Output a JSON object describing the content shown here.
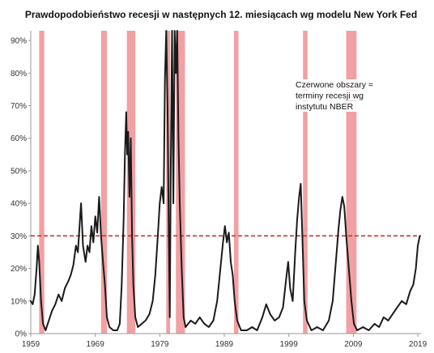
{
  "chart_data": {
    "type": "line",
    "title": "Prawdopodobieństwo recesji w następnych  12. miesiącach wg modelu New York Fed",
    "xlabel": "",
    "ylabel": "",
    "xlim": [
      1959,
      2019.5
    ],
    "ylim": [
      0,
      0.93
    ],
    "x_ticks": [
      1959,
      1969,
      1979,
      1989,
      1999,
      2009,
      2019
    ],
    "x_tick_labels": [
      "1959",
      "1969",
      "1979",
      "1989",
      "1999",
      "2009",
      "2019"
    ],
    "y_ticks": [
      0,
      0.1,
      0.2,
      0.3,
      0.4,
      0.5,
      0.6,
      0.7,
      0.8,
      0.9
    ],
    "y_tick_labels": [
      "0%",
      "10%",
      "20%",
      "30%",
      "40%",
      "50%",
      "60%",
      "70%",
      "80%",
      "90%"
    ],
    "grid": false,
    "legend": "none",
    "threshold": {
      "value": 0.3,
      "style": "dashed",
      "color": "#c0392b"
    },
    "recession_shading": [
      [
        1960.3,
        1961.1
      ],
      [
        1969.9,
        1970.8
      ],
      [
        1973.9,
        1975.2
      ],
      [
        1980.0,
        1980.6
      ],
      [
        1981.5,
        1982.9
      ],
      [
        1990.5,
        1991.2
      ],
      [
        2001.2,
        2001.9
      ],
      [
        2007.9,
        2009.5
      ]
    ],
    "annotation": {
      "lines": [
        "Czerwone obszary =",
        "terminy recesji wg",
        "instytutu NBER"
      ]
    },
    "colors": {
      "line": "#1a1a1a",
      "recession": "#f2a0a3",
      "threshold": "#c0392b"
    },
    "series": [
      {
        "values": [
          [
            1959.0,
            0.1
          ],
          [
            1959.3,
            0.09
          ],
          [
            1959.6,
            0.12
          ],
          [
            1959.9,
            0.2
          ],
          [
            1960.1,
            0.27
          ],
          [
            1960.3,
            0.22
          ],
          [
            1960.6,
            0.1
          ],
          [
            1960.9,
            0.03
          ],
          [
            1961.3,
            0.01
          ],
          [
            1961.8,
            0.04
          ],
          [
            1962.3,
            0.07
          ],
          [
            1962.8,
            0.09
          ],
          [
            1963.3,
            0.12
          ],
          [
            1963.8,
            0.1
          ],
          [
            1964.3,
            0.14
          ],
          [
            1964.8,
            0.16
          ],
          [
            1965.2,
            0.18
          ],
          [
            1965.6,
            0.21
          ],
          [
            1966.0,
            0.27
          ],
          [
            1966.3,
            0.25
          ],
          [
            1966.6,
            0.34
          ],
          [
            1966.8,
            0.4
          ],
          [
            1967.1,
            0.27
          ],
          [
            1967.5,
            0.22
          ],
          [
            1967.8,
            0.27
          ],
          [
            1968.1,
            0.25
          ],
          [
            1968.4,
            0.33
          ],
          [
            1968.7,
            0.28
          ],
          [
            1969.0,
            0.36
          ],
          [
            1969.3,
            0.31
          ],
          [
            1969.6,
            0.42
          ],
          [
            1969.9,
            0.3
          ],
          [
            1970.2,
            0.22
          ],
          [
            1970.5,
            0.15
          ],
          [
            1970.8,
            0.05
          ],
          [
            1971.2,
            0.02
          ],
          [
            1971.8,
            0.01
          ],
          [
            1972.4,
            0.01
          ],
          [
            1972.8,
            0.03
          ],
          [
            1973.1,
            0.15
          ],
          [
            1973.4,
            0.35
          ],
          [
            1973.6,
            0.55
          ],
          [
            1973.8,
            0.68
          ],
          [
            1973.95,
            0.55
          ],
          [
            1974.1,
            0.62
          ],
          [
            1974.3,
            0.42
          ],
          [
            1974.5,
            0.6
          ],
          [
            1974.7,
            0.3
          ],
          [
            1974.9,
            0.15
          ],
          [
            1975.2,
            0.05
          ],
          [
            1975.6,
            0.02
          ],
          [
            1976.2,
            0.03
          ],
          [
            1976.8,
            0.04
          ],
          [
            1977.4,
            0.06
          ],
          [
            1977.9,
            0.1
          ],
          [
            1978.3,
            0.18
          ],
          [
            1978.7,
            0.3
          ],
          [
            1979.0,
            0.4
          ],
          [
            1979.3,
            0.45
          ],
          [
            1979.6,
            0.4
          ],
          [
            1979.8,
            0.78
          ],
          [
            1980.0,
            0.93
          ],
          [
            1980.2,
            0.7
          ],
          [
            1980.4,
            0.3
          ],
          [
            1980.55,
            0.05
          ],
          [
            1980.7,
            0.5
          ],
          [
            1980.9,
            0.93
          ],
          [
            1981.1,
            0.4
          ],
          [
            1981.3,
            0.93
          ],
          [
            1981.5,
            0.8
          ],
          [
            1981.7,
            0.93
          ],
          [
            1981.9,
            0.6
          ],
          [
            1982.1,
            0.4
          ],
          [
            1982.4,
            0.2
          ],
          [
            1982.7,
            0.05
          ],
          [
            1983.0,
            0.02
          ],
          [
            1983.8,
            0.04
          ],
          [
            1984.5,
            0.03
          ],
          [
            1985.2,
            0.05
          ],
          [
            1985.9,
            0.03
          ],
          [
            1986.6,
            0.02
          ],
          [
            1987.3,
            0.04
          ],
          [
            1987.9,
            0.1
          ],
          [
            1988.4,
            0.2
          ],
          [
            1988.8,
            0.28
          ],
          [
            1989.1,
            0.33
          ],
          [
            1989.4,
            0.28
          ],
          [
            1989.7,
            0.31
          ],
          [
            1990.0,
            0.22
          ],
          [
            1990.3,
            0.18
          ],
          [
            1990.6,
            0.1
          ],
          [
            1991.0,
            0.04
          ],
          [
            1991.6,
            0.01
          ],
          [
            1992.5,
            0.01
          ],
          [
            1993.3,
            0.02
          ],
          [
            1994.1,
            0.01
          ],
          [
            1994.9,
            0.05
          ],
          [
            1995.5,
            0.09
          ],
          [
            1996.1,
            0.06
          ],
          [
            1996.8,
            0.04
          ],
          [
            1997.5,
            0.05
          ],
          [
            1998.1,
            0.08
          ],
          [
            1998.6,
            0.17
          ],
          [
            1998.9,
            0.22
          ],
          [
            1999.2,
            0.14
          ],
          [
            1999.6,
            0.1
          ],
          [
            2000.0,
            0.25
          ],
          [
            2000.3,
            0.35
          ],
          [
            2000.6,
            0.42
          ],
          [
            2000.85,
            0.46
          ],
          [
            2001.1,
            0.3
          ],
          [
            2001.4,
            0.1
          ],
          [
            2001.8,
            0.04
          ],
          [
            2002.5,
            0.01
          ],
          [
            2003.4,
            0.02
          ],
          [
            2004.3,
            0.01
          ],
          [
            2005.2,
            0.04
          ],
          [
            2005.8,
            0.1
          ],
          [
            2006.3,
            0.22
          ],
          [
            2006.7,
            0.32
          ],
          [
            2007.0,
            0.38
          ],
          [
            2007.3,
            0.42
          ],
          [
            2007.6,
            0.39
          ],
          [
            2007.9,
            0.3
          ],
          [
            2008.3,
            0.2
          ],
          [
            2008.7,
            0.1
          ],
          [
            2009.1,
            0.03
          ],
          [
            2009.6,
            0.01
          ],
          [
            2010.5,
            0.02
          ],
          [
            2011.4,
            0.01
          ],
          [
            2012.3,
            0.03
          ],
          [
            2013.0,
            0.02
          ],
          [
            2013.7,
            0.05
          ],
          [
            2014.4,
            0.04
          ],
          [
            2015.1,
            0.06
          ],
          [
            2015.8,
            0.08
          ],
          [
            2016.5,
            0.1
          ],
          [
            2017.2,
            0.09
          ],
          [
            2017.8,
            0.13
          ],
          [
            2018.3,
            0.15
          ],
          [
            2018.7,
            0.2
          ],
          [
            2019.0,
            0.27
          ],
          [
            2019.3,
            0.3
          ]
        ]
      }
    ]
  }
}
